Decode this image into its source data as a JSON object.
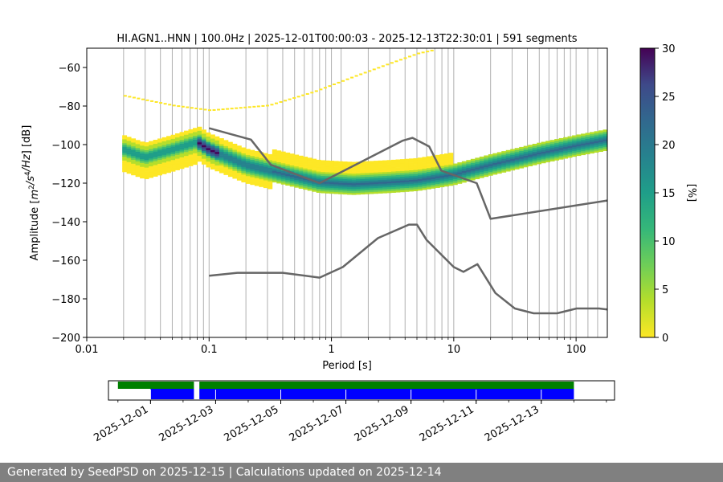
{
  "chart_data": {
    "type": "heatmap",
    "title": "HI.AGN1..HNN | 100.0Hz | 2025-12-01T00:00:03 - 2025-12-13T22:30:01 | 591 segments",
    "xlabel": "Period [s]",
    "ylabel": "Amplitude [$m^2/s^4/Hz$] [dB]",
    "xscale": "log",
    "xlim": [
      0.01,
      180
    ],
    "ylim": [
      -200,
      -50
    ],
    "x_tick_labels": [
      "0.01",
      "0.1",
      "1",
      "10",
      "100"
    ],
    "y_tick_labels": [
      "−200",
      "−180",
      "−160",
      "−140",
      "−120",
      "−100",
      "−80",
      "−60"
    ],
    "grid": "vertical lines at period bins",
    "colorbar": {
      "label": "[%]",
      "range": [
        0,
        30
      ],
      "tick_labels": [
        "0",
        "5",
        "10",
        "15",
        "20",
        "25",
        "30"
      ],
      "colormap": "viridis_r"
    },
    "series": [
      {
        "name": "high noise model",
        "color": "#666666",
        "x": [
          0.1,
          0.22,
          0.32,
          0.8,
          3.8,
          4.6,
          6.3,
          7.9,
          15.4,
          20,
          180
        ],
        "y": [
          -91.5,
          -97.4,
          -110.5,
          -120,
          -98,
          -96.5,
          -101,
          -113.5,
          -120,
          -138.5,
          -129
        ]
      },
      {
        "name": "low noise model",
        "color": "#666666",
        "x": [
          0.1,
          0.17,
          0.4,
          0.8,
          1.24,
          2.4,
          4.3,
          5,
          6,
          10,
          12,
          15.6,
          21.9,
          31.6,
          45,
          70,
          101,
          154,
          180
        ],
        "y": [
          -168,
          -166.5,
          -166.5,
          -169,
          -163.5,
          -148.5,
          -141.5,
          -141.5,
          -149.5,
          -163.5,
          -166,
          -162,
          -177,
          -185,
          -187.5,
          -187.5,
          -185,
          -185,
          -185.5
        ]
      },
      {
        "name": "PSD mode (density ridge)",
        "color": "#26828e",
        "x": [
          0.02,
          0.03,
          0.05,
          0.08,
          0.1,
          0.2,
          0.5,
          0.8,
          1.5,
          3,
          5,
          8,
          10,
          20,
          50,
          100,
          180
        ],
        "y": [
          -103,
          -107,
          -103,
          -99,
          -103,
          -111,
          -117,
          -120,
          -121,
          -120,
          -119,
          -117,
          -116,
          -111,
          -105,
          -101,
          -98
        ]
      },
      {
        "name": "sparse upper outliers",
        "color": "#fde725",
        "x": [
          0.02,
          0.05,
          0.1,
          0.3,
          0.7,
          1.5,
          3,
          5,
          7
        ],
        "y": [
          -75,
          -80,
          -82.5,
          -80,
          -73,
          -65,
          -58,
          -53,
          -51
        ]
      }
    ],
    "time_coverage": {
      "x_tick_labels": [
        "2025-12-01",
        "2025-12-03",
        "2025-12-05",
        "2025-12-07",
        "2025-12-09",
        "2025-12-11",
        "2025-12-13"
      ],
      "xlim": [
        "2025-11-29T17:00",
        "2025-12-15T06:00"
      ],
      "rows": [
        {
          "color": "#008000",
          "segments": [
            [
              "2025-11-30T00:00",
              "2025-12-02T08:00"
            ],
            [
              "2025-12-02T12:00",
              "2025-12-14T00:00"
            ]
          ]
        },
        {
          "color": "#0000ff",
          "segments": [
            [
              "2025-12-01T00:00",
              "2025-12-02T08:00"
            ],
            [
              "2025-12-02T12:00",
              "2025-12-14T00:00"
            ]
          ]
        }
      ]
    }
  },
  "footer": {
    "text": "Generated by SeedPSD on 2025-12-15 | Calculations updated on 2025-12-14"
  }
}
